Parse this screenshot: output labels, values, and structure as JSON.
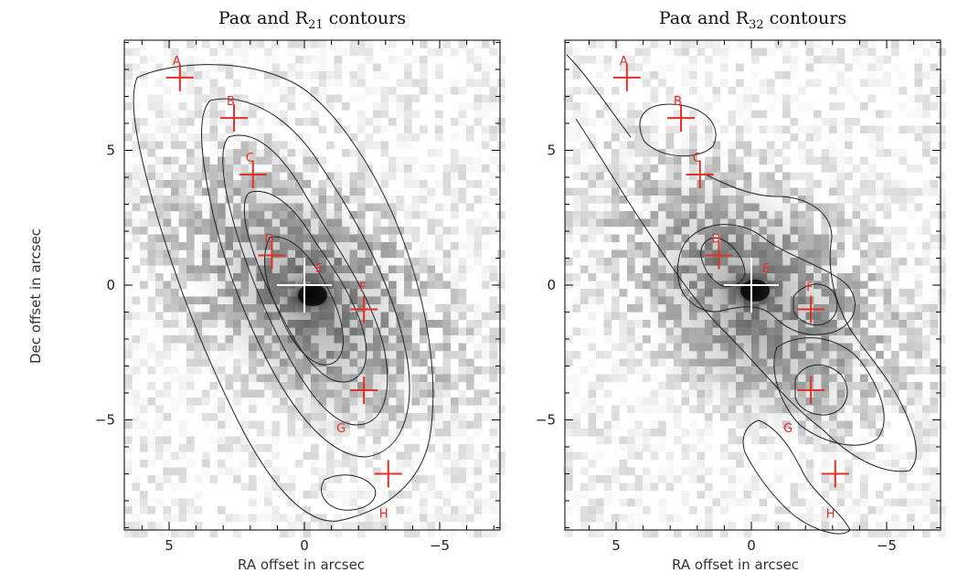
{
  "figure": {
    "panels": [
      {
        "title_main": "Paα and R",
        "title_sub": "21",
        "title_tail": " contours",
        "xticks": [
          {
            "value": 5,
            "label": "5"
          },
          {
            "value": 0,
            "label": "0"
          },
          {
            "value": -5,
            "label": "−5"
          }
        ],
        "yticks": [
          {
            "value": 5,
            "label": "5"
          },
          {
            "value": 0,
            "label": "0"
          },
          {
            "value": -5,
            "label": "−5"
          }
        ],
        "markers": [
          {
            "id": "A",
            "ra": 4.6,
            "dec": 7.7
          },
          {
            "id": "B",
            "ra": 2.6,
            "dec": 6.2
          },
          {
            "id": "C",
            "ra": 1.9,
            "dec": 4.1
          },
          {
            "id": "D",
            "ra": 1.2,
            "dec": 1.1
          },
          {
            "id": "E",
            "ra": 0.0,
            "dec": 0.0
          },
          {
            "id": "F",
            "ra": -2.2,
            "dec": -0.9
          },
          {
            "id": "G",
            "ra": -2.2,
            "dec": -3.9
          },
          {
            "id": "H",
            "ra": -3.1,
            "dec": -7.0
          }
        ]
      },
      {
        "title_main": "Paα and R",
        "title_sub": "32",
        "title_tail": " contours",
        "xticks": [
          {
            "value": 5,
            "label": "5"
          },
          {
            "value": 0,
            "label": "0"
          },
          {
            "value": -5,
            "label": "−5"
          }
        ],
        "yticks": [
          {
            "value": 5,
            "label": "5"
          },
          {
            "value": 0,
            "label": "0"
          },
          {
            "value": -5,
            "label": "−5"
          }
        ],
        "markers": [
          {
            "id": "A",
            "ra": 4.6,
            "dec": 7.7
          },
          {
            "id": "B",
            "ra": 2.6,
            "dec": 6.2
          },
          {
            "id": "C",
            "ra": 1.9,
            "dec": 4.1
          },
          {
            "id": "D",
            "ra": 1.2,
            "dec": 1.1
          },
          {
            "id": "E",
            "ra": 0.0,
            "dec": 0.0
          },
          {
            "id": "F",
            "ra": -2.2,
            "dec": -0.9
          },
          {
            "id": "G",
            "ra": -2.2,
            "dec": -3.9
          },
          {
            "id": "H",
            "ra": -3.1,
            "dec": -7.0
          }
        ]
      }
    ],
    "xlabel": "RA offset in arcsec",
    "ylabel": "Dec offset in arcsec"
  },
  "colors": {
    "marker": "#e0302a",
    "contour": "#222222",
    "frame": "#000000"
  }
}
